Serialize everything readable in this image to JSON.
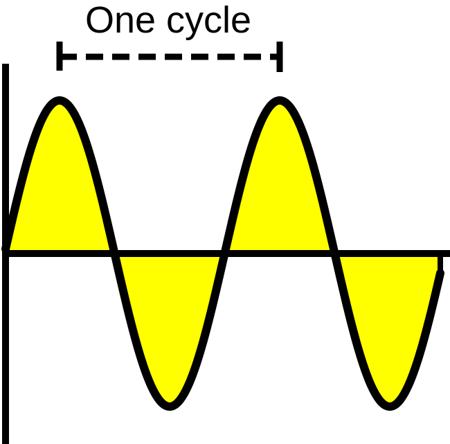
{
  "diagram": {
    "label": "One cycle",
    "colors": {
      "fill": "#ffff00",
      "stroke": "#000000",
      "background": "#ffffff"
    },
    "wave": {
      "type": "sine",
      "cycles_shown": 2
    }
  }
}
